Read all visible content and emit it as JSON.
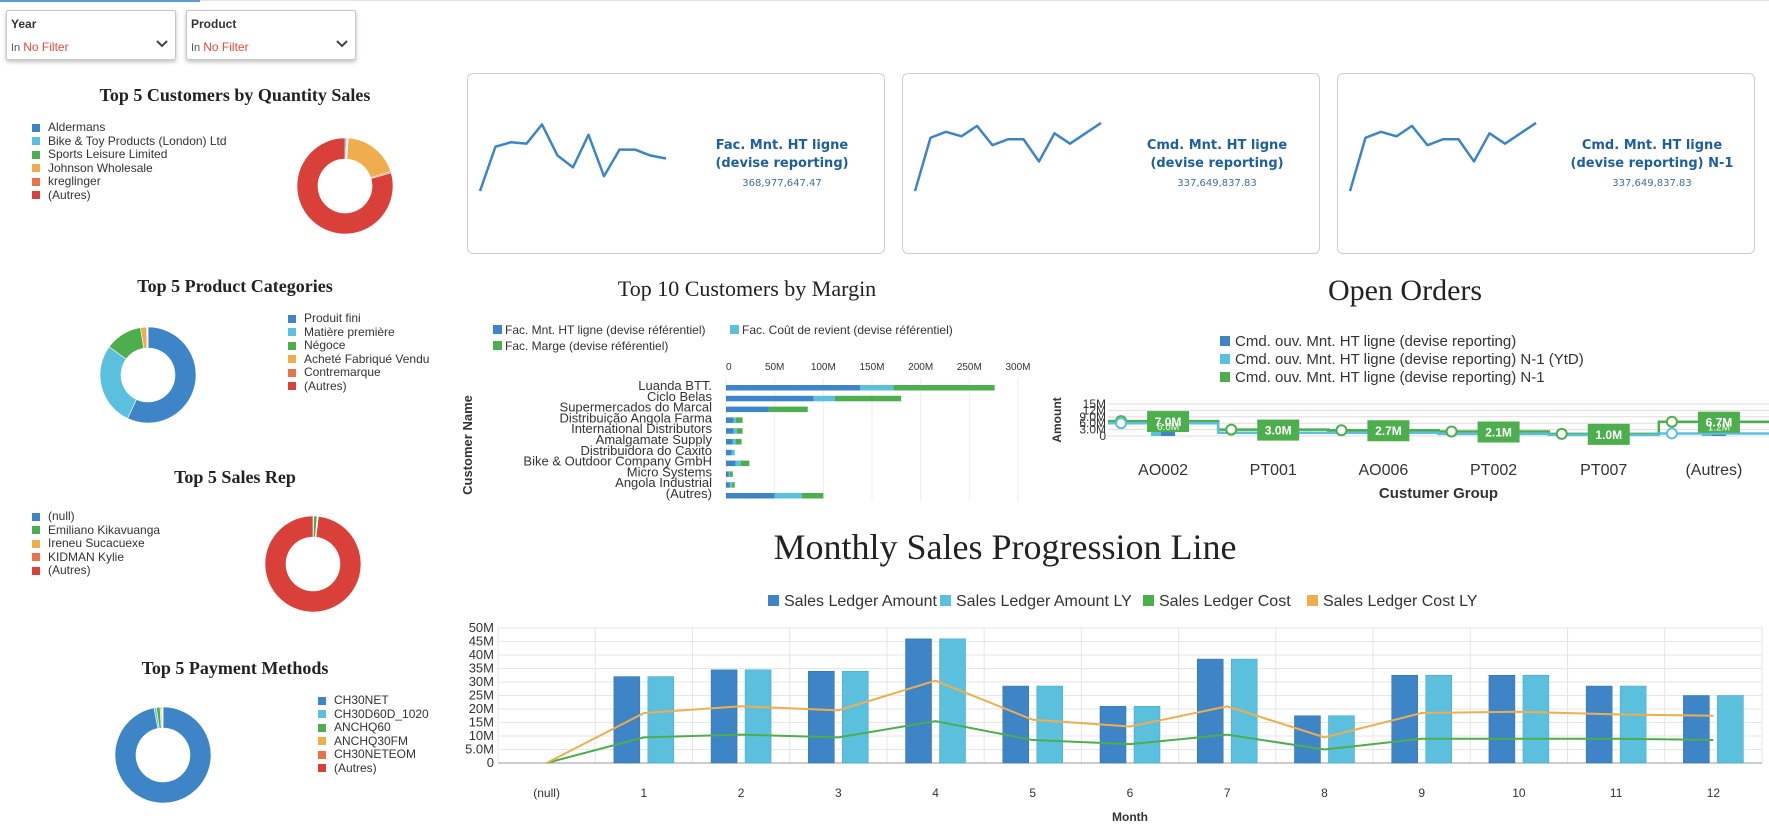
{
  "filters": [
    {
      "label": "Year",
      "in": "In",
      "value": "No Filter"
    },
    {
      "label": "Product",
      "in": "In",
      "value": "No Filter"
    }
  ],
  "colors": {
    "blue": "#3d85c6",
    "lightblue": "#5bc0de",
    "green": "#4cae4c",
    "orange": "#f0ad4e",
    "salmon": "#e8734a",
    "red": "#d9403a",
    "kpi_line": "#3d85c6",
    "kpi_text": "#1f5f9f"
  },
  "pies": {
    "customers": {
      "title": "Top 5 Customers by Quantity Sales",
      "legend": [
        "Aldermans",
        "Bike & Toy Products (London) Ltd",
        "Sports Leisure Limited",
        "Johnson Wholesale",
        "kreglinger",
        "(Autres)"
      ],
      "colors": [
        "#3d85c6",
        "#5bc0de",
        "#4cae4c",
        "#f0ad4e",
        "#e8734a",
        "#d9403a"
      ],
      "values": [
        0.5,
        0.3,
        0.3,
        19,
        0.5,
        79.4
      ]
    },
    "categories": {
      "title": "Top 5 Product Categories",
      "legend": [
        "Produit fini",
        "Matière première",
        "Négoce",
        "Acheté Fabriqué Vendu",
        "Contremarque",
        "(Autres)"
      ],
      "colors": [
        "#3d85c6",
        "#5bc0de",
        "#4cae4c",
        "#f0ad4e",
        "#e8734a",
        "#d9403a"
      ],
      "values": [
        57,
        28,
        12.5,
        2,
        0.3,
        0.2
      ]
    },
    "salesrep": {
      "title": "Top 5 Sales Rep",
      "legend": [
        "(null)",
        "Emiliano Kikavuanga",
        "Ireneu Sucacuexe",
        "KIDMAN Kylie",
        "(Autres)"
      ],
      "colors": [
        "#3d85c6",
        "#4cae4c",
        "#f0ad4e",
        "#e8734a",
        "#d9403a"
      ],
      "values": [
        0.2,
        1.2,
        0.2,
        0.2,
        98.2
      ]
    },
    "payment": {
      "title": "Top 5 Payment Methods",
      "legend": [
        "CH30NET",
        "CH30D60D_1020",
        "ANCHQ60",
        "ANCHQ30FM",
        "CH30NETEOM",
        "(Autres)"
      ],
      "colors": [
        "#3d85c6",
        "#5bc0de",
        "#4cae4c",
        "#f0ad4e",
        "#e8734a",
        "#d9403a"
      ],
      "values": [
        97,
        0.8,
        1.2,
        0.5,
        0.3,
        0.2
      ]
    }
  },
  "kpis": [
    {
      "title": "Fac. Mnt. HT ligne (devise reporting)",
      "value": "368,977,647.47",
      "spark": [
        2,
        32,
        35,
        34,
        47,
        26,
        18,
        40,
        12,
        30,
        30,
        26,
        24
      ]
    },
    {
      "title": "Cmd. Mnt. HT ligne (devise reporting)",
      "value": "337,649,837.83",
      "spark": [
        2,
        38,
        42,
        39,
        46,
        33,
        37,
        37,
        22,
        41,
        34,
        41,
        48
      ]
    },
    {
      "title": "Cmd. Mnt. HT ligne (devise reporting) N-1",
      "value": "337,649,837.83",
      "spark": [
        2,
        38,
        42,
        39,
        46,
        33,
        37,
        37,
        22,
        41,
        34,
        41,
        48
      ]
    }
  ],
  "margin_chart": {
    "title": "Top 10 Customers by Margin",
    "legend": [
      "Fac. Mnt. HT ligne (devise référentiel)",
      "Fac. Coût de revient (devise référentiel)",
      "Fac. Marge (devise référentiel)"
    ],
    "ylabel": "Customer Name",
    "ticks": [
      "0",
      "50M",
      "100M",
      "150M",
      "200M",
      "250M",
      "300M"
    ]
  },
  "open_orders": {
    "title": "Open Orders",
    "legend": [
      "Cmd. ouv. Mnt. HT ligne (devise reporting)",
      "Cmd. ouv. Mnt. HT ligne (devise reporting) N-1 (YtD)",
      "Cmd. ouv. Mnt. HT ligne (devise reporting) N-1"
    ],
    "xlabel": "Custumer Group",
    "ylabel": "Amount",
    "yticks": [
      "15M",
      "12M",
      "9.0M",
      "6.0M",
      "3.0M",
      "0"
    ],
    "labels": [
      "7.0M",
      "3.0M",
      "2.7M",
      "2.1M",
      "1.0M",
      "6.7M"
    ],
    "bottom_labels": [
      "6.0M",
      "1.2M"
    ]
  },
  "monthly": {
    "title": "Monthly Sales Progression Line",
    "legend": [
      "Sales Ledger Amount",
      "Sales Ledger Amount LY",
      "Sales Ledger Cost",
      "Sales Ledger Cost LY"
    ],
    "xlabel": "Month",
    "yticks": [
      "50M",
      "45M",
      "40M",
      "35M",
      "30M",
      "25M",
      "20M",
      "15M",
      "10M",
      "5.0M",
      "0"
    ]
  },
  "chart_data": [
    {
      "type": "bar",
      "title": "Top 10 Customers by Margin",
      "ylabel": "Customer Name",
      "orientation": "horizontal",
      "stacked": true,
      "xlim": [
        0,
        300
      ],
      "x_unit": "M",
      "categories": [
        "Luanda BTT.",
        "Ciclo Belas",
        "Supermercados do Marcal",
        "Distribuição Angola Farma",
        "International Distributors",
        "Amalgamate Supply",
        "Distribuidora do Caxito",
        "Bike & Outdoor Company GmbH",
        "Micro Systems",
        "Angola Industrial",
        "(Autres)"
      ],
      "series": [
        {
          "name": "Fac. Mnt. HT ligne (devise référentiel)",
          "values": [
            138,
            90,
            44,
            8,
            8,
            7,
            6,
            10,
            3,
            4,
            50
          ]
        },
        {
          "name": "Fac. Coût de revient (devise référentiel)",
          "values": [
            34,
            22,
            0,
            2,
            3,
            3,
            3,
            5,
            1,
            2,
            28
          ]
        },
        {
          "name": "Fac. Marge (devise référentiel)",
          "values": [
            104,
            68,
            40,
            7,
            6,
            6,
            0,
            9,
            3,
            3,
            22
          ]
        }
      ]
    },
    {
      "type": "bar",
      "title": "Open Orders",
      "xlabel": "Custumer Group",
      "ylabel": "Amount",
      "ylim": [
        0,
        15
      ],
      "y_unit": "M",
      "categories": [
        "AO002",
        "PT001",
        "AO006",
        "PT002",
        "PT007",
        "(Autres)"
      ],
      "series": [
        {
          "name": "Cmd. ouv. Mnt. HT ligne (devise reporting)",
          "values": [
            6.0,
            1.5,
            1.5,
            1.0,
            0.5,
            1.2
          ]
        },
        {
          "name": "Cmd. ouv. Mnt. HT ligne (devise reporting) N-1 (YtD)",
          "values": [
            6.0,
            1.5,
            1.5,
            1.0,
            0.5,
            1.2
          ]
        },
        {
          "name": "Cmd. ouv. Mnt. HT ligne (devise reporting) N-1",
          "values": [
            7.0,
            3.0,
            2.7,
            2.1,
            1.0,
            6.7
          ]
        }
      ]
    },
    {
      "type": "bar",
      "title": "Monthly Sales Progression Line",
      "xlabel": "Month",
      "ylim": [
        0,
        50
      ],
      "y_unit": "M",
      "categories": [
        "(null)",
        "1",
        "2",
        "3",
        "4",
        "5",
        "6",
        "7",
        "8",
        "9",
        "10",
        "11",
        "12"
      ],
      "series": [
        {
          "name": "Sales Ledger Amount",
          "kind": "bar",
          "values": [
            0,
            32,
            34.5,
            34,
            46,
            28.5,
            21,
            38.5,
            17.5,
            32.5,
            32.5,
            28.5,
            25
          ]
        },
        {
          "name": "Sales Ledger Amount LY",
          "kind": "bar",
          "values": [
            0,
            32,
            34.5,
            34,
            46,
            28.5,
            21,
            38.5,
            17.5,
            32.5,
            32.5,
            28.5,
            25
          ]
        },
        {
          "name": "Sales Ledger Cost",
          "kind": "line",
          "values": [
            0,
            9.5,
            10.5,
            9.5,
            15.5,
            8.5,
            7,
            10.5,
            5,
            9,
            9,
            9,
            8.5
          ]
        },
        {
          "name": "Sales Ledger Cost LY",
          "kind": "line",
          "values": [
            0,
            18.5,
            21,
            19.5,
            30.5,
            16,
            13.5,
            21,
            9.5,
            18.5,
            19,
            18,
            17.5
          ]
        }
      ]
    }
  ]
}
